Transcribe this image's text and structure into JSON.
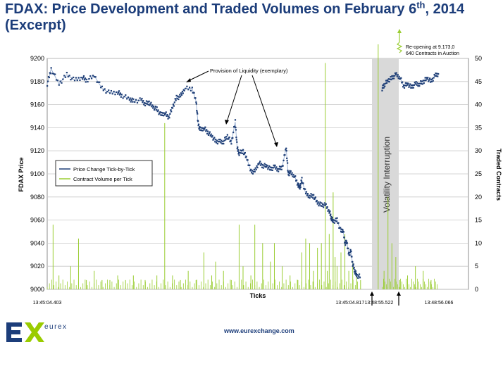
{
  "page": {
    "title_main": "FDAX: Price Development and Traded Volumes on February 6",
    "title_sup": "th",
    "title_end": ", 2014",
    "title_line2": "(Excerpt)",
    "footer_url": "www.eurexchange.com",
    "logo_text": "eurex",
    "colors": {
      "title": "#1c3d7a",
      "logo_green": "#9acc00",
      "logo_blue": "#1c3d7a"
    }
  },
  "chart_data": {
    "type": "line",
    "xlabel": "Ticks",
    "ylabel_left": "FDAX Price",
    "ylabel_right": "Traded Contracts",
    "ylim_left": [
      9000,
      9200
    ],
    "ylim_right": [
      0,
      50
    ],
    "yticks_left": [
      9000,
      9020,
      9040,
      9060,
      9080,
      9100,
      9120,
      9140,
      9160,
      9180,
      9200
    ],
    "yticks_right": [
      0,
      5,
      10,
      15,
      20,
      25,
      30,
      35,
      40,
      45,
      50
    ],
    "x_tick_labels": [
      "13:45:04.403",
      "13:45:04.817",
      "13:48:55.522",
      "13:48:56.066"
    ],
    "x_tick_ticks": [
      0,
      0.773,
      0.847,
      1.0
    ],
    "grid": true,
    "legend_position": "left-middle",
    "series": [
      {
        "name": "Price Change Tick-by-Tick",
        "color": "#1f3f77",
        "axis": "left",
        "segments": [
          [
            0.0,
            9178
          ],
          [
            0.01,
            9191
          ],
          [
            0.03,
            9178
          ],
          [
            0.05,
            9186
          ],
          [
            0.07,
            9181
          ],
          [
            0.09,
            9184
          ],
          [
            0.1,
            9181
          ],
          [
            0.12,
            9185
          ],
          [
            0.14,
            9174
          ],
          [
            0.16,
            9170
          ],
          [
            0.18,
            9171
          ],
          [
            0.19,
            9168
          ],
          [
            0.21,
            9165
          ],
          [
            0.22,
            9163
          ],
          [
            0.24,
            9164
          ],
          [
            0.25,
            9161
          ],
          [
            0.26,
            9162
          ],
          [
            0.27,
            9158
          ],
          [
            0.28,
            9156
          ],
          [
            0.29,
            9151
          ],
          [
            0.3,
            9153
          ],
          [
            0.31,
            9149
          ],
          [
            0.32,
            9158
          ],
          [
            0.33,
            9166
          ],
          [
            0.34,
            9167
          ],
          [
            0.35,
            9174
          ],
          [
            0.37,
            9174
          ],
          [
            0.38,
            9163
          ],
          [
            0.385,
            9144
          ],
          [
            0.39,
            9138
          ],
          [
            0.4,
            9140
          ],
          [
            0.41,
            9136
          ],
          [
            0.42,
            9133
          ],
          [
            0.43,
            9128
          ],
          [
            0.44,
            9128
          ],
          [
            0.45,
            9128
          ],
          [
            0.46,
            9133
          ],
          [
            0.47,
            9127
          ],
          [
            0.48,
            9145
          ],
          [
            0.485,
            9122
          ],
          [
            0.49,
            9118
          ],
          [
            0.5,
            9120
          ],
          [
            0.51,
            9113
          ],
          [
            0.52,
            9102
          ],
          [
            0.53,
            9102
          ],
          [
            0.54,
            9110
          ],
          [
            0.55,
            9107
          ],
          [
            0.56,
            9107
          ],
          [
            0.57,
            9104
          ],
          [
            0.58,
            9106
          ],
          [
            0.59,
            9104
          ],
          [
            0.6,
            9106
          ],
          [
            0.61,
            9123
          ],
          [
            0.615,
            9100
          ],
          [
            0.62,
            9101
          ],
          [
            0.63,
            9099
          ],
          [
            0.64,
            9091
          ],
          [
            0.645,
            9088
          ],
          [
            0.65,
            9095
          ],
          [
            0.66,
            9083
          ],
          [
            0.67,
            9081
          ],
          [
            0.68,
            9081
          ],
          [
            0.69,
            9075
          ],
          [
            0.7,
            9073
          ],
          [
            0.71,
            9073
          ],
          [
            0.72,
            9068
          ],
          [
            0.725,
            9062
          ],
          [
            0.73,
            9059
          ],
          [
            0.74,
            9060
          ],
          [
            0.75,
            9050
          ],
          [
            0.755,
            9052
          ],
          [
            0.76,
            9040
          ],
          [
            0.765,
            9041
          ],
          [
            0.77,
            9030
          ],
          [
            0.775,
            9033
          ],
          [
            0.78,
            9022
          ],
          [
            0.785,
            9016
          ],
          [
            0.79,
            9012
          ],
          [
            0.8,
            9011
          ]
        ],
        "segment2": [
          [
            0.855,
            9174
          ],
          [
            0.86,
            9177
          ],
          [
            0.87,
            9181
          ],
          [
            0.88,
            9183
          ],
          [
            0.89,
            9186
          ],
          [
            0.9,
            9184
          ],
          [
            0.91,
            9176
          ],
          [
            0.92,
            9178
          ],
          [
            0.93,
            9175
          ],
          [
            0.94,
            9178
          ],
          [
            0.95,
            9178
          ],
          [
            0.96,
            9180
          ],
          [
            0.97,
            9183
          ],
          [
            0.98,
            9180
          ],
          [
            0.99,
            9185
          ],
          [
            1.0,
            9187
          ]
        ]
      },
      {
        "name": "Contract Volume per Tick",
        "color": "#9acd32",
        "axis": "right",
        "spikes": [
          [
            0.015,
            14
          ],
          [
            0.03,
            3
          ],
          [
            0.06,
            5
          ],
          [
            0.08,
            11
          ],
          [
            0.1,
            2
          ],
          [
            0.12,
            4
          ],
          [
            0.14,
            2
          ],
          [
            0.16,
            2
          ],
          [
            0.18,
            3
          ],
          [
            0.2,
            2
          ],
          [
            0.22,
            3
          ],
          [
            0.25,
            2
          ],
          [
            0.28,
            3
          ],
          [
            0.3,
            36
          ],
          [
            0.32,
            3
          ],
          [
            0.34,
            2
          ],
          [
            0.36,
            4
          ],
          [
            0.38,
            2
          ],
          [
            0.4,
            8
          ],
          [
            0.42,
            3
          ],
          [
            0.43,
            6
          ],
          [
            0.45,
            4
          ],
          [
            0.47,
            2
          ],
          [
            0.49,
            14
          ],
          [
            0.5,
            5
          ],
          [
            0.52,
            3
          ],
          [
            0.53,
            14
          ],
          [
            0.55,
            10
          ],
          [
            0.57,
            6
          ],
          [
            0.58,
            10
          ],
          [
            0.6,
            5
          ],
          [
            0.62,
            3
          ],
          [
            0.64,
            2
          ],
          [
            0.65,
            8
          ],
          [
            0.66,
            11
          ],
          [
            0.67,
            10
          ],
          [
            0.68,
            4
          ],
          [
            0.69,
            9
          ],
          [
            0.7,
            10
          ],
          [
            0.71,
            49
          ],
          [
            0.715,
            4
          ],
          [
            0.72,
            12
          ],
          [
            0.73,
            21
          ],
          [
            0.735,
            7
          ],
          [
            0.74,
            5
          ],
          [
            0.75,
            8
          ],
          [
            0.76,
            12
          ],
          [
            0.77,
            4
          ],
          [
            0.78,
            6
          ],
          [
            0.79,
            3
          ],
          [
            0.8,
            2
          ],
          [
            0.845,
            63
          ],
          [
            0.86,
            4
          ],
          [
            0.87,
            20
          ],
          [
            0.88,
            10
          ],
          [
            0.89,
            7
          ],
          [
            0.9,
            2
          ],
          [
            0.92,
            3
          ],
          [
            0.94,
            5
          ],
          [
            0.96,
            4
          ],
          [
            0.98,
            2
          ]
        ]
      }
    ],
    "annotations": [
      {
        "text": "Provision of Liquidity (exemplary)"
      },
      {
        "text_line1": "Re-opening at 9.173,0",
        "text_line2": "640 Contracts in Auction"
      },
      {
        "text": "Volatility Interruption"
      }
    ]
  }
}
